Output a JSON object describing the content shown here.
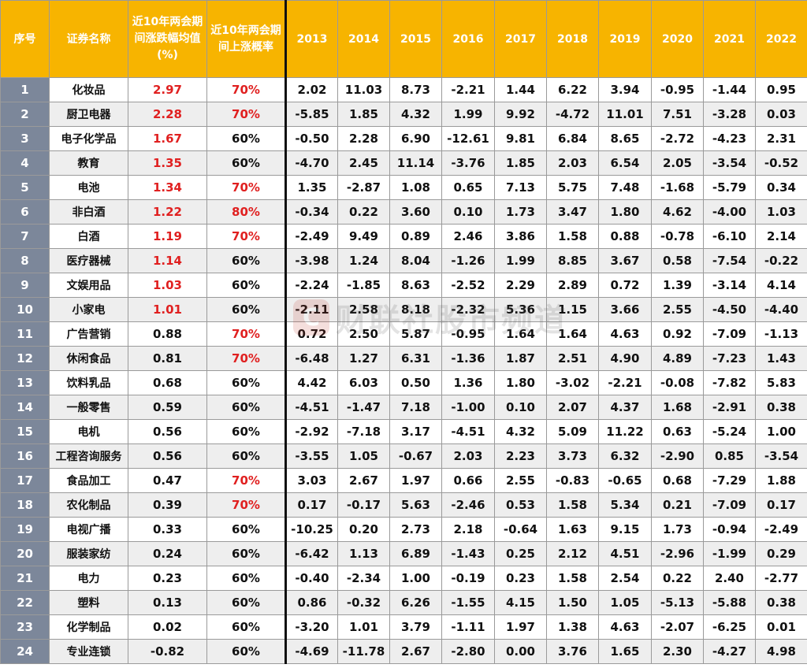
{
  "header": {
    "index": "序号",
    "name": "证券名称",
    "avg_change": "近10年两会期间涨跌幅均值(%)",
    "up_prob": "近10年两会期间上涨概率",
    "years": [
      "2013",
      "2014",
      "2015",
      "2016",
      "2017",
      "2018",
      "2019",
      "2020",
      "2021",
      "2022"
    ]
  },
  "watermark": {
    "logo": "C",
    "text": "财联社股市频道"
  },
  "colors": {
    "header_bg": "#f7b400",
    "index_bg": "#7c879a",
    "highlight": "#e02020"
  },
  "rows": [
    {
      "idx": "1",
      "name": "化妆品",
      "avg": "2.97",
      "prob": "70%",
      "avg_red": true,
      "prob_red": true,
      "vals": [
        "2.02",
        "11.03",
        "8.73",
        "-2.21",
        "1.44",
        "6.22",
        "3.94",
        "-0.95",
        "-1.44",
        "0.95"
      ]
    },
    {
      "idx": "2",
      "name": "厨卫电器",
      "avg": "2.28",
      "prob": "70%",
      "avg_red": true,
      "prob_red": true,
      "vals": [
        "-5.85",
        "1.85",
        "4.32",
        "1.99",
        "9.92",
        "-4.72",
        "11.01",
        "7.51",
        "-3.28",
        "0.03"
      ]
    },
    {
      "idx": "3",
      "name": "电子化学品",
      "avg": "1.67",
      "prob": "60%",
      "avg_red": true,
      "prob_red": false,
      "vals": [
        "-0.50",
        "2.28",
        "6.90",
        "-12.61",
        "9.81",
        "6.84",
        "8.65",
        "-2.72",
        "-4.23",
        "2.31"
      ]
    },
    {
      "idx": "4",
      "name": "教育",
      "avg": "1.35",
      "prob": "60%",
      "avg_red": true,
      "prob_red": false,
      "vals": [
        "-4.70",
        "2.45",
        "11.14",
        "-3.76",
        "1.85",
        "2.03",
        "6.54",
        "2.05",
        "-3.54",
        "-0.52"
      ]
    },
    {
      "idx": "5",
      "name": "电池",
      "avg": "1.34",
      "prob": "70%",
      "avg_red": true,
      "prob_red": true,
      "vals": [
        "1.35",
        "-2.87",
        "1.08",
        "0.65",
        "7.13",
        "5.75",
        "7.48",
        "-1.68",
        "-5.79",
        "0.34"
      ]
    },
    {
      "idx": "6",
      "name": "非白酒",
      "avg": "1.22",
      "prob": "80%",
      "avg_red": true,
      "prob_red": true,
      "vals": [
        "-0.34",
        "0.22",
        "3.60",
        "0.10",
        "1.73",
        "3.47",
        "1.80",
        "4.62",
        "-4.00",
        "1.03"
      ]
    },
    {
      "idx": "7",
      "name": "白酒",
      "avg": "1.19",
      "prob": "70%",
      "avg_red": true,
      "prob_red": true,
      "vals": [
        "-2.49",
        "9.49",
        "0.89",
        "2.46",
        "3.86",
        "1.58",
        "0.88",
        "-0.78",
        "-6.10",
        "2.14"
      ]
    },
    {
      "idx": "8",
      "name": "医疗器械",
      "avg": "1.14",
      "prob": "60%",
      "avg_red": true,
      "prob_red": false,
      "vals": [
        "-3.98",
        "1.24",
        "8.04",
        "-1.26",
        "1.99",
        "8.85",
        "3.67",
        "0.58",
        "-7.54",
        "-0.22"
      ]
    },
    {
      "idx": "9",
      "name": "文娱用品",
      "avg": "1.03",
      "prob": "60%",
      "avg_red": true,
      "prob_red": false,
      "vals": [
        "-2.24",
        "-1.85",
        "8.63",
        "-2.52",
        "2.29",
        "2.89",
        "0.72",
        "1.39",
        "-3.14",
        "4.14"
      ]
    },
    {
      "idx": "10",
      "name": "小家电",
      "avg": "1.01",
      "prob": "60%",
      "avg_red": true,
      "prob_red": false,
      "vals": [
        "-2.11",
        "2.58",
        "8.18",
        "-2.32",
        "5.36",
        "1.15",
        "3.66",
        "2.55",
        "-4.50",
        "-4.40"
      ]
    },
    {
      "idx": "11",
      "name": "广告营销",
      "avg": "0.88",
      "prob": "70%",
      "avg_red": false,
      "prob_red": true,
      "vals": [
        "0.72",
        "2.50",
        "5.87",
        "-0.95",
        "1.64",
        "1.64",
        "4.63",
        "0.92",
        "-7.09",
        "-1.13"
      ]
    },
    {
      "idx": "12",
      "name": "休闲食品",
      "avg": "0.81",
      "prob": "70%",
      "avg_red": false,
      "prob_red": true,
      "vals": [
        "-6.48",
        "1.27",
        "6.31",
        "-1.36",
        "1.87",
        "2.51",
        "4.90",
        "4.89",
        "-7.23",
        "1.43"
      ]
    },
    {
      "idx": "13",
      "name": "饮料乳品",
      "avg": "0.68",
      "prob": "60%",
      "avg_red": false,
      "prob_red": false,
      "vals": [
        "4.42",
        "6.03",
        "0.50",
        "1.36",
        "1.80",
        "-3.02",
        "-2.21",
        "-0.08",
        "-7.82",
        "5.83"
      ]
    },
    {
      "idx": "14",
      "name": "一般零售",
      "avg": "0.59",
      "prob": "60%",
      "avg_red": false,
      "prob_red": false,
      "vals": [
        "-4.51",
        "-1.47",
        "7.18",
        "-1.00",
        "0.10",
        "2.07",
        "4.37",
        "1.68",
        "-2.91",
        "0.38"
      ]
    },
    {
      "idx": "15",
      "name": "电机",
      "avg": "0.56",
      "prob": "60%",
      "avg_red": false,
      "prob_red": false,
      "vals": [
        "-2.92",
        "-7.18",
        "3.17",
        "-4.51",
        "4.32",
        "5.09",
        "11.22",
        "0.63",
        "-5.24",
        "1.00"
      ]
    },
    {
      "idx": "16",
      "name": "工程咨询服务",
      "avg": "0.56",
      "prob": "60%",
      "avg_red": false,
      "prob_red": false,
      "vals": [
        "-3.55",
        "1.05",
        "-0.67",
        "2.03",
        "2.23",
        "3.73",
        "6.32",
        "-2.90",
        "0.85",
        "-3.54"
      ]
    },
    {
      "idx": "17",
      "name": "食品加工",
      "avg": "0.47",
      "prob": "70%",
      "avg_red": false,
      "prob_red": true,
      "vals": [
        "3.03",
        "2.67",
        "1.97",
        "0.66",
        "2.55",
        "-0.83",
        "-0.65",
        "0.68",
        "-7.29",
        "1.88"
      ]
    },
    {
      "idx": "18",
      "name": "农化制品",
      "avg": "0.39",
      "prob": "70%",
      "avg_red": false,
      "prob_red": true,
      "vals": [
        "0.17",
        "-0.17",
        "5.63",
        "-2.46",
        "0.53",
        "1.58",
        "5.34",
        "0.21",
        "-7.09",
        "0.17"
      ]
    },
    {
      "idx": "19",
      "name": "电视广播",
      "avg": "0.33",
      "prob": "60%",
      "avg_red": false,
      "prob_red": false,
      "vals": [
        "-10.25",
        "0.20",
        "2.73",
        "2.18",
        "-0.64",
        "1.63",
        "9.15",
        "1.73",
        "-0.94",
        "-2.49"
      ]
    },
    {
      "idx": "20",
      "name": "服装家纺",
      "avg": "0.24",
      "prob": "60%",
      "avg_red": false,
      "prob_red": false,
      "vals": [
        "-6.42",
        "1.13",
        "6.89",
        "-1.43",
        "0.25",
        "2.12",
        "4.51",
        "-2.96",
        "-1.99",
        "0.29"
      ]
    },
    {
      "idx": "21",
      "name": "电力",
      "avg": "0.23",
      "prob": "60%",
      "avg_red": false,
      "prob_red": false,
      "vals": [
        "-0.40",
        "-2.34",
        "1.00",
        "-0.19",
        "0.23",
        "1.58",
        "2.54",
        "0.22",
        "2.40",
        "-2.77"
      ]
    },
    {
      "idx": "22",
      "name": "塑料",
      "avg": "0.13",
      "prob": "60%",
      "avg_red": false,
      "prob_red": false,
      "vals": [
        "0.86",
        "-0.32",
        "6.26",
        "-1.55",
        "4.15",
        "1.50",
        "1.05",
        "-5.13",
        "-5.88",
        "0.38"
      ]
    },
    {
      "idx": "23",
      "name": "化学制品",
      "avg": "0.02",
      "prob": "60%",
      "avg_red": false,
      "prob_red": false,
      "vals": [
        "-3.20",
        "1.01",
        "3.79",
        "-1.11",
        "1.97",
        "1.38",
        "4.63",
        "-2.07",
        "-6.25",
        "0.01"
      ]
    },
    {
      "idx": "24",
      "name": "专业连锁",
      "avg": "-0.82",
      "prob": "60%",
      "avg_red": false,
      "prob_red": false,
      "vals": [
        "-4.69",
        "-11.78",
        "2.67",
        "-2.80",
        "0.00",
        "3.76",
        "1.65",
        "2.30",
        "-4.27",
        "4.98"
      ]
    }
  ]
}
